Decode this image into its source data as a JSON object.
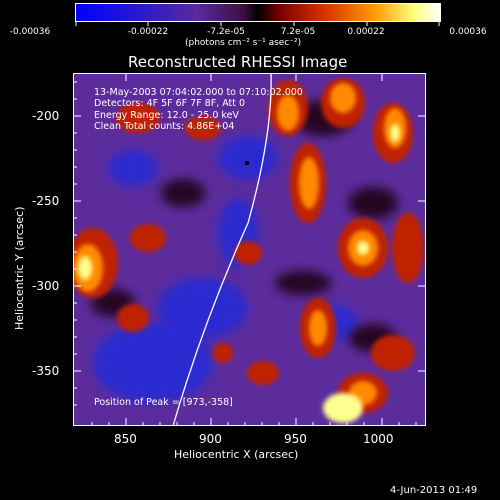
{
  "colorbar": {
    "tick_labels": [
      "-0.00036",
      "-0.00022",
      "-7.2e-05",
      "7.2e-05",
      "0.00022",
      "0.00036"
    ],
    "units": "(photons cm⁻² s⁻¹ asec⁻²)"
  },
  "title": "Reconstructed RHESSI Image",
  "info": {
    "time_range": "13-May-2003 07:04:02.000 to 07:10:02.000",
    "detectors": "Detectors: 4F 5F 6F 7F 8F, Att 0",
    "energy": "Energy Range: 12.0 - 25.0 keV",
    "clean": "Clean    Total counts: 4.86E+04",
    "peak": "Position of Peak = [973,-358]"
  },
  "axes": {
    "xlabel": "Heliocentric X (arcsec)",
    "ylabel": "Heliocentric Y (arcsec)",
    "x_ticks": [
      "850",
      "900",
      "950",
      "1000"
    ],
    "y_ticks": [
      "-200",
      "-250",
      "-300",
      "-350"
    ]
  },
  "footer": {
    "timestamp": "4-Jun-2013 01:49"
  }
}
